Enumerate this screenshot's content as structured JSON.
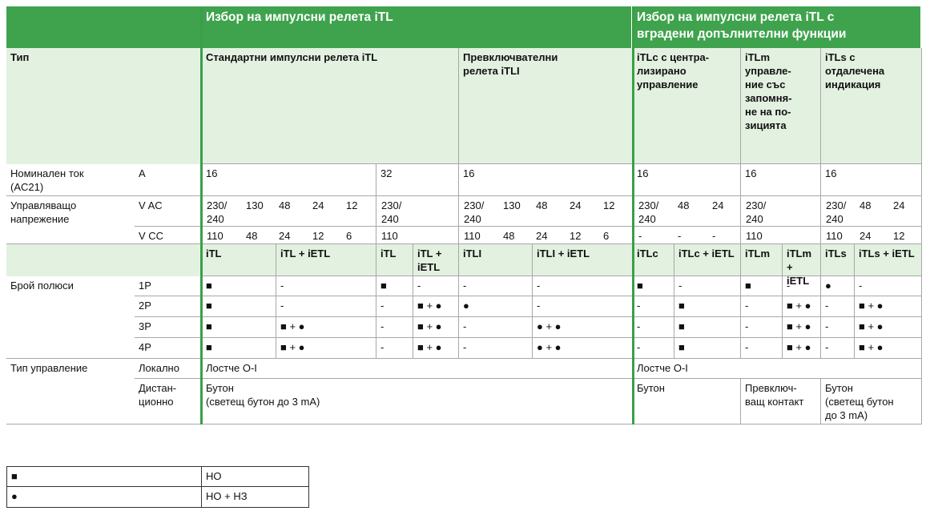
{
  "header": {
    "group1": "Избор на импулсни релета iTL",
    "group2": "Избор на импулсни релета iTL с\nвградени допълнителни функции"
  },
  "types": {
    "label": "Тип",
    "values": [
      "Стандартни импулсни релета iTL",
      "Превключвателни\nрелета iTLI",
      "iTLc с центра-\nлизирано\nуправление",
      "iTLm\nуправле-\nние със\nзапомня-\nне на по-\nзицията",
      "iTLs с\nотдалечена\nиндикация"
    ]
  },
  "current": {
    "label": "Номинален ток\n(AC21)",
    "unit": "A",
    "values": [
      "16",
      "32",
      "16",
      "16",
      "16",
      "16"
    ]
  },
  "voltage": {
    "label": "Управляващо\nнапрежение",
    "ac": {
      "unit": "V AC",
      "values": [
        [
          "230/\n240",
          "130",
          "48",
          "24",
          "12"
        ],
        [
          "230/\n240"
        ],
        [
          "230/\n240",
          "130",
          "48",
          "24",
          "12"
        ],
        [
          "230/\n240",
          "48",
          "24"
        ],
        [
          "230/\n240"
        ],
        [
          "230/\n240",
          "48",
          "24"
        ]
      ]
    },
    "dc": {
      "unit": "V CC",
      "values": [
        [
          "110",
          "48",
          "24",
          "12",
          "6"
        ],
        [
          "110"
        ],
        [
          "110",
          "48",
          "24",
          "12",
          "6"
        ],
        [
          "-",
          "-",
          "-"
        ],
        [
          "110"
        ],
        [
          "110",
          "24",
          "12"
        ]
      ]
    }
  },
  "subheaders": [
    "iTL",
    "iTL + iETL",
    "iTL",
    "iTL +\niETL",
    "iTLI",
    "iTLI + iETL",
    "iTLc",
    "iTLc + iETL",
    "iTLm",
    "iTLm\n+ iETL",
    "iTLs",
    "iTLs + iETL"
  ],
  "poles": {
    "label": "Брой полюси",
    "rows": [
      {
        "unit": "1P",
        "values": [
          "■",
          "-",
          "■",
          "-",
          "-",
          "-",
          "■",
          "-",
          "■",
          "-",
          "●",
          "-"
        ]
      },
      {
        "unit": "2P",
        "values": [
          "■",
          "-",
          "-",
          "■ + ●",
          "●",
          "-",
          "-",
          "■",
          "-",
          "■ + ●",
          "-",
          "■ + ●"
        ]
      },
      {
        "unit": "3P",
        "values": [
          "■",
          "■ + ●",
          "-",
          "■ + ●",
          "-",
          "● + ●",
          "-",
          "■",
          "-",
          "■ + ●",
          "-",
          "■ + ●"
        ]
      },
      {
        "unit": "4P",
        "values": [
          "■",
          "■ + ●",
          "-",
          "■ + ●",
          "-",
          "● + ●",
          "-",
          "■",
          "-",
          "■ + ●",
          "-",
          "■ + ●"
        ]
      }
    ]
  },
  "control": {
    "label": "Тип управление",
    "local": {
      "unit": "Локално",
      "values": [
        "Лостче O-I",
        "Лостче O-I"
      ]
    },
    "remote": {
      "unit": "Дистан-\nционно",
      "values": [
        "Бутон\n(светещ бутон до 3 mA)",
        "Бутон",
        "Превключ-\nващ контакт",
        "Бутон\n(светещ бутон\nдо 3 mA)"
      ]
    }
  },
  "legend": [
    [
      "■",
      "НО"
    ],
    [
      "●",
      "НО + НЗ"
    ]
  ]
}
